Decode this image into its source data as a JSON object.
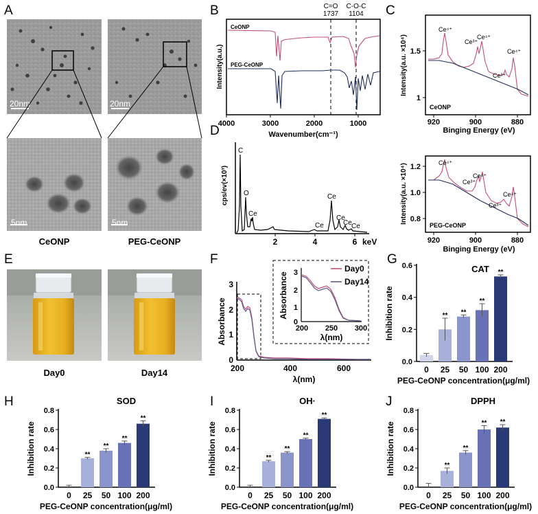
{
  "panel_labels": {
    "A": "A",
    "B": "B",
    "C": "C",
    "D": "D",
    "E": "E",
    "F": "F",
    "G": "G",
    "H": "H",
    "I": "I",
    "J": "J"
  },
  "panel_a": {
    "label_left": "CeONP",
    "label_right": "PEG-CeONP",
    "scale_top": "20nm",
    "scale_bottom": "5nm"
  },
  "panel_e": {
    "label_left": "Day0",
    "label_right": "Day14"
  },
  "bar_colors": [
    "#d2d4e9",
    "#a9b0d9",
    "#8b95cc",
    "#6972b7",
    "#2a3a77"
  ],
  "line_colors": {
    "ceonp": "#c05074",
    "peg": "#1f2b5a",
    "day0": "#c05074",
    "day14": "#5f5a8e"
  },
  "chart_data": [
    {
      "id": "B",
      "type": "line",
      "xlabel": "Wavenumber(cm⁻¹)",
      "ylabel": "Intensity(a.u.)",
      "xlim": [
        4000,
        500
      ],
      "xticks": [
        "4000",
        "3000",
        "2000",
        "1000"
      ],
      "series": [
        {
          "name": "CeONP"
        },
        {
          "name": "PEG-CeONP"
        }
      ],
      "annotations": [
        {
          "text": "C=O",
          "value": "1737",
          "x": 1737
        },
        {
          "text": "C-O-C",
          "value": "1104",
          "x": 1104
        }
      ]
    },
    {
      "id": "C1",
      "type": "line",
      "xlabel": "Binging Energy  (eV)",
      "ylabel": "Intensity(a.u. ×10⁴)",
      "xlim": [
        925,
        875
      ],
      "ylim": [
        0.85,
        1.9
      ],
      "xticks": [
        "920",
        "900",
        "880"
      ],
      "yticks": [
        "1",
        "1.5"
      ],
      "series": [
        {
          "name": "CeONP"
        }
      ],
      "peaks": [
        {
          "label": "Ce⁴⁺",
          "x": 916
        },
        {
          "label": "Ce³⁺",
          "x": 901
        },
        {
          "label": "Ce⁴⁺",
          "x": 898
        },
        {
          "label": "Ce³⁺",
          "x": 885
        },
        {
          "label": "Ce⁴⁺",
          "x": 882
        }
      ]
    },
    {
      "id": "C2",
      "type": "line",
      "xlabel": "Binging Energy  (eV)",
      "ylabel": "Intensity(a.u. ×10⁴)",
      "xlim": [
        925,
        875
      ],
      "ylim": [
        0.75,
        1.25
      ],
      "xticks": [
        "920",
        "900",
        "880"
      ],
      "yticks": [
        "0.8",
        "1.0",
        "1.2"
      ],
      "series": [
        {
          "name": "PEG-CeONP"
        }
      ],
      "peaks": [
        {
          "label": "Ce⁴⁺",
          "x": 916
        },
        {
          "label": "Ce³⁺",
          "x": 901
        },
        {
          "label": "Ce⁴⁺",
          "x": 898
        },
        {
          "label": "Ce³⁺",
          "x": 885
        },
        {
          "label": "Ce⁴⁺",
          "x": 882
        }
      ]
    },
    {
      "id": "D",
      "type": "line",
      "xlabel": "keV",
      "ylabel": "cps/ev(×10³)",
      "xlim": [
        0,
        7
      ],
      "ylim": [
        0,
        1.5
      ],
      "xticks": [
        "2",
        "4",
        "6"
      ],
      "yticks": [
        "0.0",
        "0.5",
        "1.0",
        "1.5"
      ],
      "peaks": [
        {
          "label": "C",
          "x": 0.28,
          "y": 1.3
        },
        {
          "label": "O",
          "x": 0.53,
          "y": 0.6
        },
        {
          "label": "Ce",
          "x": 0.88,
          "y": 0.3
        },
        {
          "label": "Ce",
          "x": 4.26,
          "y": 0.13
        },
        {
          "label": "Ce",
          "x": 4.84,
          "y": 0.52
        },
        {
          "label": "Ce",
          "x": 5.26,
          "y": 0.27
        },
        {
          "label": "Ce",
          "x": 5.6,
          "y": 0.15
        },
        {
          "label": "Ce",
          "x": 6.05,
          "y": 0.08
        }
      ]
    },
    {
      "id": "F",
      "type": "line",
      "xlabel": "λ(nm)",
      "ylabel": "Absorbance",
      "xlim": [
        200,
        700
      ],
      "ylim": [
        0,
        3
      ],
      "xticks": [
        "200",
        "400",
        "600"
      ],
      "yticks": [
        "0",
        "1",
        "2",
        "3"
      ],
      "series": [
        {
          "name": "Day0"
        },
        {
          "name": "Day14"
        }
      ],
      "inset": {
        "xlabel": "λ(nm)",
        "ylabel": "Absorbance",
        "xlim": [
          200,
          300
        ],
        "ylim": [
          0,
          3
        ],
        "xticks": [
          "200",
          "250",
          "300"
        ],
        "yticks": [
          "0",
          "1",
          "2",
          "3"
        ]
      }
    },
    {
      "id": "G",
      "type": "bar",
      "title": "CAT",
      "xlabel": "PEG-CeONP concentration(μg/ml)",
      "ylabel": "Inhibition rate",
      "categories": [
        "0",
        "25",
        "50",
        "100",
        "200"
      ],
      "values": [
        0.04,
        0.2,
        0.28,
        0.32,
        0.53
      ],
      "errors": [
        0.01,
        0.07,
        0.01,
        0.04,
        0.01
      ],
      "significance": [
        "",
        "**",
        "**",
        "**",
        "**"
      ],
      "ylim": [
        0,
        0.6
      ],
      "yticks": [
        "0.0",
        "0.2",
        "0.4",
        "0.6"
      ]
    },
    {
      "id": "H",
      "type": "bar",
      "title": "SOD",
      "xlabel": "PEG-CeONP concentration(μg/ml)",
      "ylabel": "Inhibition rate",
      "categories": [
        "0",
        "25",
        "50",
        "100",
        "200"
      ],
      "values": [
        0.0,
        0.3,
        0.38,
        0.46,
        0.66
      ],
      "errors": [
        0.02,
        0.01,
        0.02,
        0.02,
        0.03
      ],
      "significance": [
        "",
        "**",
        "**",
        "**",
        "**"
      ],
      "ylim": [
        0,
        0.8
      ],
      "yticks": [
        "0.0",
        "0.2",
        "0.4",
        "0.6",
        "0.8"
      ]
    },
    {
      "id": "I",
      "type": "bar",
      "title": "OH·",
      "xlabel": "PEG-CeONP concentration(μg/ml)",
      "ylabel": "Inhibition rate",
      "categories": [
        "0",
        "25",
        "50",
        "100",
        "200"
      ],
      "values": [
        0.0,
        0.27,
        0.36,
        0.5,
        0.71
      ],
      "errors": [
        0.02,
        0.01,
        0.01,
        0.01,
        0.01
      ],
      "significance": [
        "",
        "**",
        "**",
        "**",
        "**"
      ],
      "ylim": [
        0,
        0.8
      ],
      "yticks": [
        "0.0",
        "0.2",
        "0.4",
        "0.6",
        "0.8"
      ]
    },
    {
      "id": "J",
      "type": "bar",
      "title": "DPPH",
      "xlabel": "PEG-CeONP concentration(μg/ml)",
      "ylabel": "Inhibition rate",
      "categories": [
        "0",
        "25",
        "50",
        "100",
        "200"
      ],
      "values": [
        0.0,
        0.17,
        0.36,
        0.6,
        0.62
      ],
      "errors": [
        0.04,
        0.03,
        0.02,
        0.04,
        0.03
      ],
      "significance": [
        "",
        "**",
        "**",
        "**",
        "**"
      ],
      "ylim": [
        0,
        0.8
      ],
      "yticks": [
        "0.0",
        "0.2",
        "0.4",
        "0.6",
        "0.8"
      ]
    }
  ]
}
